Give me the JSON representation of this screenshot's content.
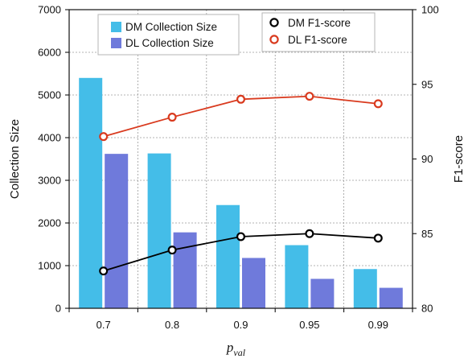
{
  "chart_data": {
    "type": "bar",
    "categories": [
      "0.7",
      "0.8",
      "0.9",
      "0.95",
      "0.99"
    ],
    "xlabel": {
      "main": "p",
      "sub": "val"
    },
    "ylabel_left": "Collection Size",
    "ylabel_right": "F1-score",
    "ylim_left": [
      0,
      7000
    ],
    "yticks_left": [
      0,
      1000,
      2000,
      3000,
      4000,
      5000,
      6000,
      7000
    ],
    "ylim_right": [
      80,
      100
    ],
    "yticks_right": [
      80,
      85,
      90,
      95,
      100
    ],
    "grid": true,
    "bar_series": [
      {
        "name": "DM Collection Size",
        "values": [
          5400,
          3630,
          2420,
          1480,
          920
        ],
        "color": "#44BDE8"
      },
      {
        "name": "DL Collection Size",
        "values": [
          3620,
          1780,
          1180,
          690,
          480
        ],
        "color": "#6F7ADB"
      }
    ],
    "line_series": [
      {
        "name": "DM F1-score",
        "values": [
          82.5,
          83.9,
          84.8,
          85.0,
          84.7
        ],
        "color": "#000000"
      },
      {
        "name": "DL F1-score",
        "values": [
          91.5,
          92.8,
          94.0,
          94.2,
          93.7
        ],
        "color": "#D93A1E"
      }
    ],
    "legends": {
      "bars": "top-left",
      "lines": "top-right"
    }
  }
}
